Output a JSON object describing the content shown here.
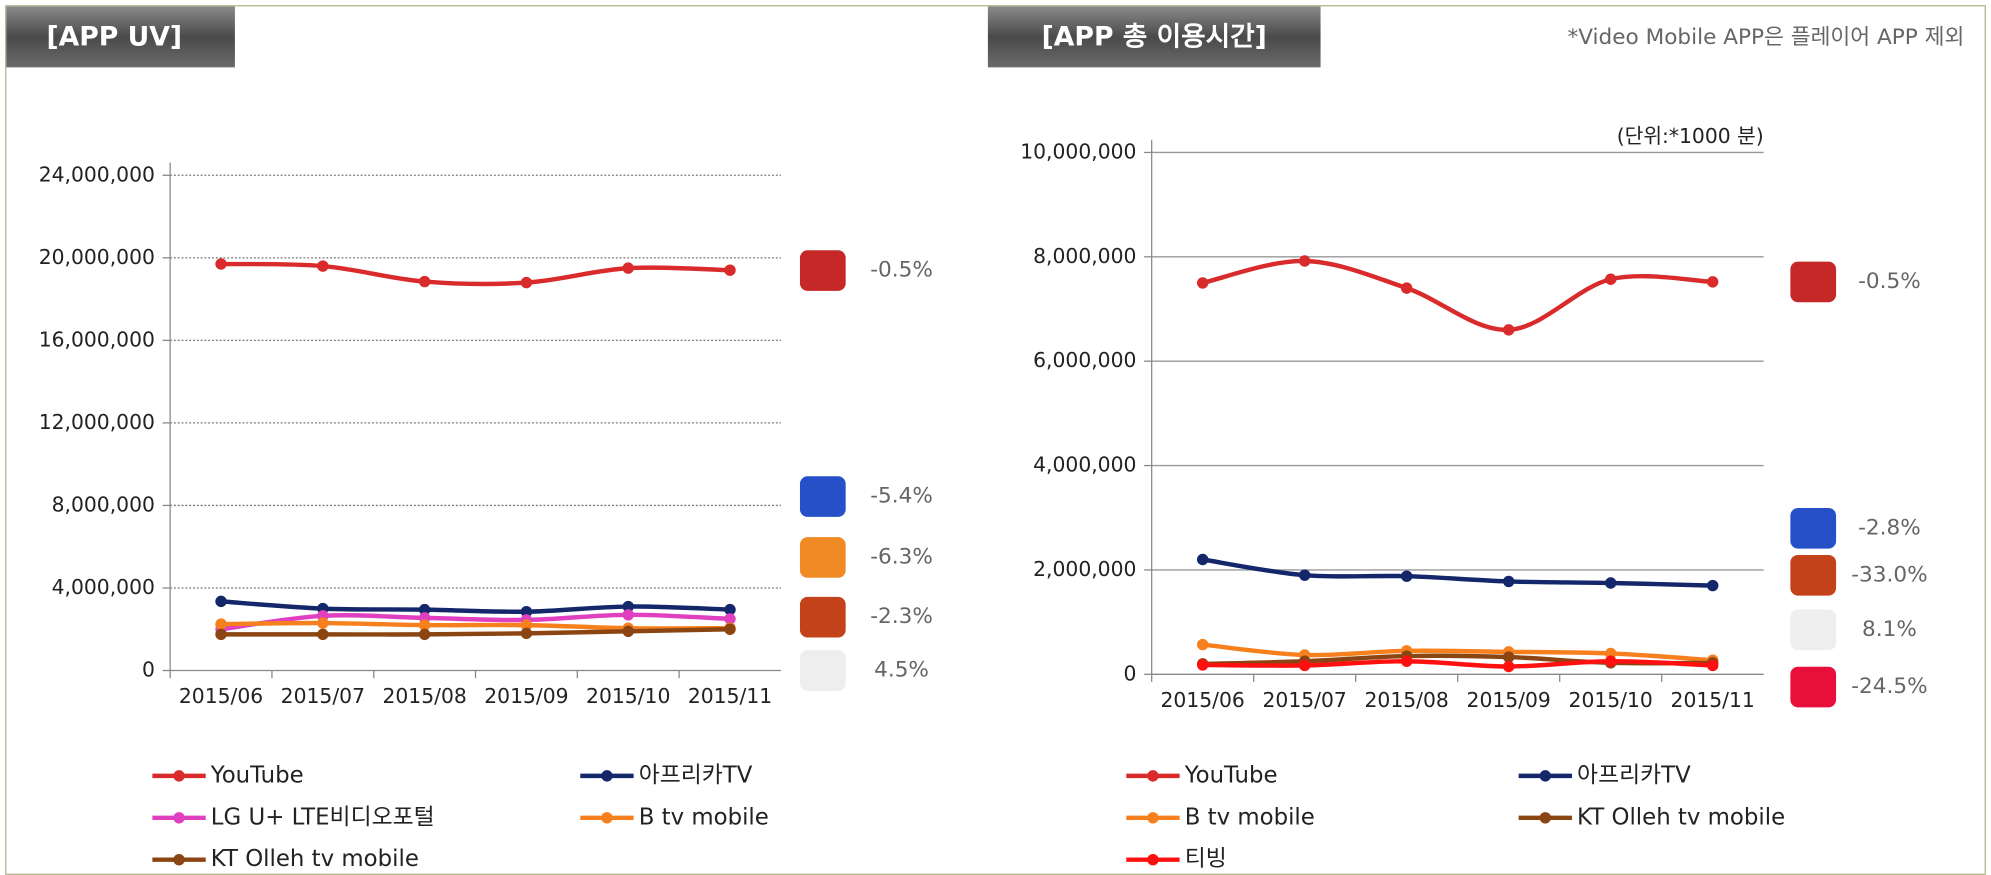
{
  "note": "*Video Mobile APP은 플레이어 APP 제외",
  "chart_data": [
    {
      "type": "line",
      "title": "[APP UV]",
      "categories": [
        "2015/06",
        "2015/07",
        "2015/08",
        "2015/09",
        "2015/10",
        "2015/11"
      ],
      "ylim": [
        0,
        24000000
      ],
      "yticks": [
        0,
        {
          "value": 4000000,
          "label": "4,000,000"
        },
        {
          "value": 8000000,
          "label": "8,000,000"
        },
        {
          "value": 12000000,
          "label": "12,000,000"
        },
        {
          "value": 16000000,
          "label": "16,000,000"
        },
        {
          "value": 20000000,
          "label": "20,000,000"
        },
        {
          "value": 24000000,
          "label": "24,000,000"
        }
      ],
      "grid": "dotted",
      "series": [
        {
          "name": "YouTube",
          "color": "#d92b2b",
          "values": [
            19700000,
            19600000,
            18850000,
            18800000,
            19500000,
            19400000
          ]
        },
        {
          "name": "아프리카TV",
          "color": "#14276b",
          "values": [
            3350000,
            3000000,
            2950000,
            2850000,
            3100000,
            2950000
          ]
        },
        {
          "name": "LG U+ LTE비디오포털",
          "color": "#e040c0",
          "values": [
            2000000,
            2650000,
            2550000,
            2450000,
            2700000,
            2500000
          ]
        },
        {
          "name": "B tv mobile",
          "color": "#f7801e",
          "values": [
            2250000,
            2300000,
            2200000,
            2200000,
            2050000,
            2050000
          ]
        },
        {
          "name": "KT Olleh tv mobile",
          "color": "#8b4513",
          "values": [
            1750000,
            1750000,
            1750000,
            1800000,
            1900000,
            2000000
          ]
        }
      ],
      "annotations": [
        "-0.5%",
        "-5.4%",
        "-6.3%",
        "-2.3%",
        "4.5%"
      ]
    },
    {
      "type": "line",
      "title": "[APP 총 이용시간]",
      "unit_label": "(단위:*1000 분)",
      "categories": [
        "2015/06",
        "2015/07",
        "2015/08",
        "2015/09",
        "2015/10",
        "2015/11"
      ],
      "ylim": [
        0,
        10000000
      ],
      "yticks": [
        0,
        {
          "value": 2000000,
          "label": "2,000,000"
        },
        {
          "value": 4000000,
          "label": "4,000,000"
        },
        {
          "value": 6000000,
          "label": "6,000,000"
        },
        {
          "value": 8000000,
          "label": "8,000,000"
        },
        {
          "value": 10000000,
          "label": "10,000,000"
        }
      ],
      "grid": "solid",
      "series": [
        {
          "name": "YouTube",
          "color": "#d92b2b",
          "values": [
            7500000,
            7920000,
            7400000,
            6600000,
            7570000,
            7520000
          ]
        },
        {
          "name": "아프리카TV",
          "color": "#14276b",
          "values": [
            2200000,
            1900000,
            1880000,
            1780000,
            1750000,
            1700000
          ]
        },
        {
          "name": "B tv mobile",
          "color": "#f7801e",
          "values": [
            570000,
            370000,
            450000,
            430000,
            400000,
            270000
          ]
        },
        {
          "name": "KT Olleh tv mobile",
          "color": "#8b4513",
          "values": [
            200000,
            250000,
            350000,
            330000,
            220000,
            220000
          ]
        },
        {
          "name": "티빙",
          "color": "#ff1010",
          "values": [
            180000,
            170000,
            250000,
            150000,
            250000,
            170000
          ]
        }
      ],
      "annotations": [
        "-0.5%",
        "-2.8%",
        "-33.0%",
        "8.1%",
        "-24.5%"
      ]
    }
  ]
}
